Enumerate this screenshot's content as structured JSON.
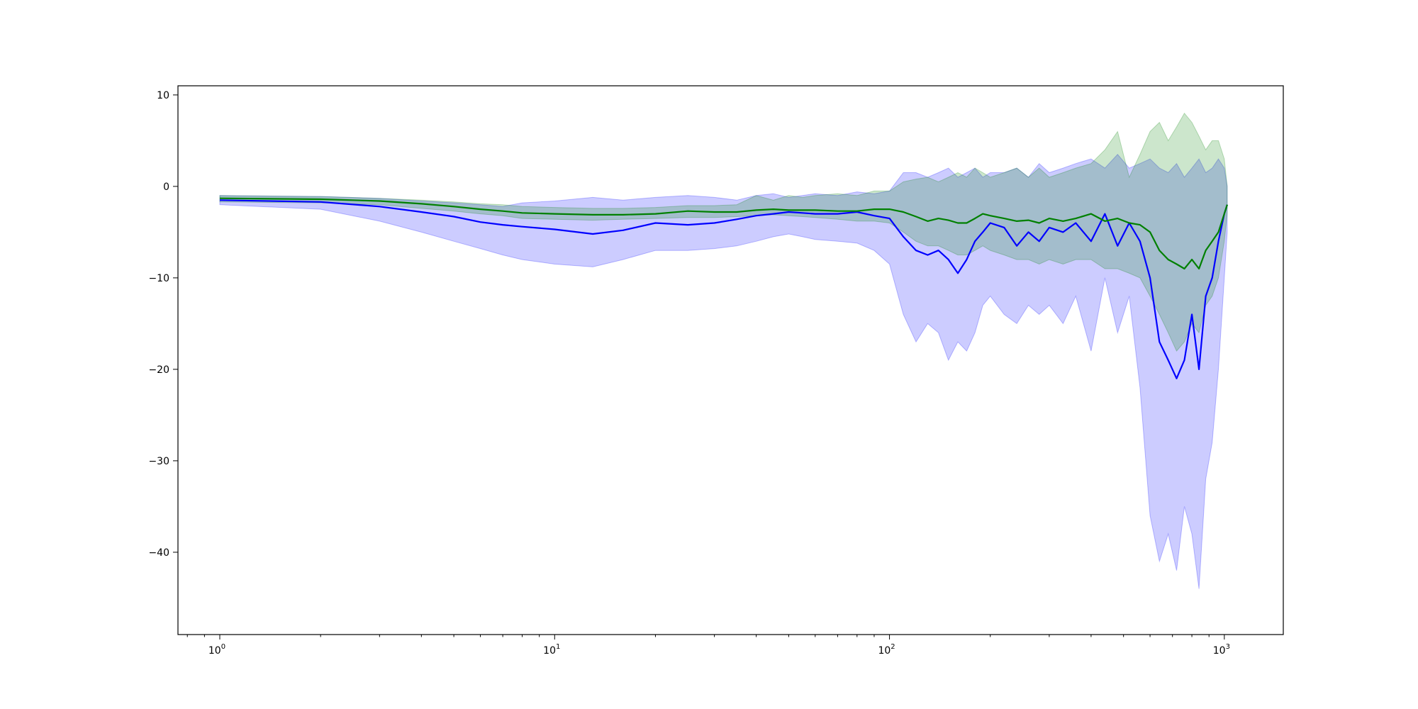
{
  "chart_data": {
    "type": "line",
    "title": "",
    "xlabel": "",
    "ylabel": "",
    "xscale": "log",
    "xlim": [
      0.75,
      1500
    ],
    "ylim": [
      -49,
      11
    ],
    "grid": false,
    "legend": "none",
    "x_ticks": [
      1,
      10,
      100,
      1000
    ],
    "x_tick_labels": [
      {
        "base": "10",
        "exp": "0"
      },
      {
        "base": "10",
        "exp": "1"
      },
      {
        "base": "10",
        "exp": "2"
      },
      {
        "base": "10",
        "exp": "3"
      }
    ],
    "y_ticks": [
      10,
      0,
      -10,
      -20,
      -30,
      -40
    ],
    "y_tick_labels": [
      "10",
      "0",
      "−10",
      "−20",
      "−30",
      "−40"
    ],
    "x": [
      1,
      2,
      3,
      4,
      5,
      6,
      7,
      8,
      10,
      13,
      16,
      20,
      25,
      30,
      35,
      40,
      45,
      50,
      55,
      60,
      70,
      80,
      90,
      100,
      110,
      120,
      130,
      140,
      150,
      160,
      170,
      180,
      190,
      200,
      220,
      240,
      260,
      280,
      300,
      330,
      360,
      400,
      440,
      480,
      520,
      560,
      600,
      640,
      680,
      720,
      760,
      800,
      840,
      880,
      920,
      960,
      1000,
      1020
    ],
    "series": [
      {
        "color": "#0000ff",
        "band_color": "#0000ff",
        "mean": [
          -1.5,
          -1.7,
          -2.2,
          -2.8,
          -3.3,
          -3.9,
          -4.2,
          -4.4,
          -4.7,
          -5.2,
          -4.8,
          -4.0,
          -4.2,
          -4.0,
          -3.6,
          -3.2,
          -3.0,
          -2.8,
          -2.9,
          -3.0,
          -3.0,
          -2.8,
          -3.2,
          -3.5,
          -5.5,
          -7.0,
          -7.5,
          -7.0,
          -8.0,
          -9.5,
          -8.0,
          -6.0,
          -5.0,
          -4.0,
          -4.5,
          -6.5,
          -5.0,
          -6.0,
          -4.5,
          -5.0,
          -4.0,
          -6.0,
          -3.0,
          -6.5,
          -4.0,
          -6.0,
          -10.0,
          -17.0,
          -19.0,
          -21.0,
          -19.0,
          -14.0,
          -20.0,
          -12.0,
          -10.0,
          -6.0,
          -3.0,
          -2.0
        ],
        "lower": [
          -2.0,
          -2.5,
          -3.8,
          -5.0,
          -6.0,
          -6.8,
          -7.5,
          -8.0,
          -8.5,
          -8.8,
          -8.0,
          -7.0,
          -7.0,
          -6.8,
          -6.5,
          -6.0,
          -5.5,
          -5.2,
          -5.5,
          -5.8,
          -6.0,
          -6.2,
          -7.0,
          -8.5,
          -14.0,
          -17.0,
          -15.0,
          -16.0,
          -19.0,
          -17.0,
          -18.0,
          -16.0,
          -13.0,
          -12.0,
          -14.0,
          -15.0,
          -13.0,
          -14.0,
          -13.0,
          -15.0,
          -12.0,
          -18.0,
          -10.0,
          -16.0,
          -12.0,
          -22.0,
          -36.0,
          -41.0,
          -38.0,
          -42.0,
          -35.0,
          -38.0,
          -44.0,
          -32.0,
          -28.0,
          -20.0,
          -10.0,
          -5.0
        ],
        "upper": [
          -1.0,
          -1.1,
          -1.3,
          -1.6,
          -1.8,
          -2.0,
          -2.2,
          -1.8,
          -1.6,
          -1.2,
          -1.5,
          -1.2,
          -1.0,
          -1.2,
          -1.5,
          -1.0,
          -0.8,
          -1.2,
          -1.0,
          -0.8,
          -1.0,
          -0.6,
          -0.8,
          -0.5,
          1.5,
          1.5,
          1.0,
          1.5,
          2.0,
          1.0,
          1.5,
          2.0,
          1.0,
          1.5,
          1.5,
          2.0,
          1.0,
          2.5,
          1.5,
          2.0,
          2.5,
          3.0,
          2.0,
          3.5,
          2.0,
          2.5,
          3.0,
          2.0,
          1.5,
          2.5,
          1.0,
          2.0,
          3.0,
          1.5,
          2.0,
          3.0,
          2.0,
          0.0
        ]
      },
      {
        "color": "#008000",
        "band_color": "#008000",
        "mean": [
          -1.3,
          -1.4,
          -1.6,
          -1.9,
          -2.2,
          -2.5,
          -2.7,
          -2.9,
          -3.0,
          -3.1,
          -3.1,
          -3.0,
          -2.7,
          -2.8,
          -2.8,
          -2.6,
          -2.5,
          -2.6,
          -2.6,
          -2.6,
          -2.7,
          -2.7,
          -2.5,
          -2.5,
          -2.8,
          -3.3,
          -3.8,
          -3.5,
          -3.7,
          -4.0,
          -4.0,
          -3.5,
          -3.0,
          -3.2,
          -3.5,
          -3.8,
          -3.7,
          -4.0,
          -3.5,
          -3.8,
          -3.5,
          -3.0,
          -3.8,
          -3.5,
          -4.0,
          -4.2,
          -5.0,
          -7.0,
          -8.0,
          -8.5,
          -9.0,
          -8.0,
          -9.0,
          -7.0,
          -6.0,
          -5.0,
          -3.0,
          -2.0
        ],
        "lower": [
          -1.7,
          -1.8,
          -2.0,
          -2.4,
          -2.7,
          -3.0,
          -3.2,
          -3.5,
          -3.6,
          -3.7,
          -3.6,
          -3.5,
          -3.4,
          -3.4,
          -3.3,
          -3.2,
          -3.1,
          -3.2,
          -3.3,
          -3.4,
          -3.6,
          -3.8,
          -3.8,
          -4.0,
          -5.0,
          -6.0,
          -6.5,
          -6.5,
          -7.0,
          -7.5,
          -7.5,
          -7.0,
          -6.5,
          -7.0,
          -7.5,
          -8.0,
          -8.0,
          -8.5,
          -8.0,
          -8.5,
          -8.0,
          -8.0,
          -9.0,
          -9.0,
          -9.5,
          -10.0,
          -12.0,
          -14.0,
          -16.0,
          -18.0,
          -17.0,
          -15.0,
          -16.0,
          -13.0,
          -12.0,
          -10.0,
          -6.0,
          -3.0
        ],
        "upper": [
          -1.0,
          -1.1,
          -1.3,
          -1.5,
          -1.7,
          -1.9,
          -2.0,
          -2.2,
          -2.3,
          -2.4,
          -2.4,
          -2.3,
          -2.1,
          -2.1,
          -2.0,
          -1.0,
          -1.5,
          -1.0,
          -1.2,
          -1.0,
          -0.8,
          -1.0,
          -0.5,
          -0.5,
          0.5,
          0.8,
          1.0,
          0.5,
          1.0,
          1.5,
          1.0,
          2.0,
          1.5,
          1.0,
          1.5,
          2.0,
          1.0,
          2.0,
          1.0,
          1.5,
          2.0,
          2.5,
          4.0,
          6.0,
          1.0,
          3.5,
          6.0,
          7.0,
          5.0,
          6.5,
          8.0,
          7.0,
          5.5,
          4.0,
          5.0,
          5.0,
          3.0,
          0.0
        ]
      }
    ]
  }
}
